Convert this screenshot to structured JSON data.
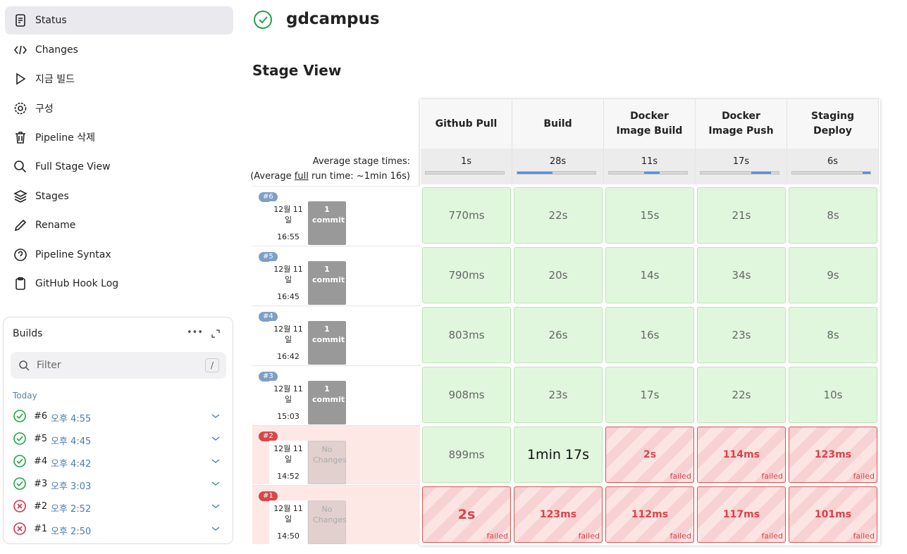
{
  "sidebar": {
    "items": [
      "Status",
      "Changes",
      "지금 빌드",
      "구성",
      "Pipeline 삭제",
      "Full Stage View",
      "Stages",
      "Rename",
      "Pipeline Syntax",
      "GitHub Hook Log"
    ]
  },
  "builds": {
    "title": "Builds",
    "filter": "Filter",
    "shortcut": "/",
    "group": "Today",
    "items": [
      {
        "number": "#6",
        "time": "오후 4:55",
        "status": "success"
      },
      {
        "number": "#5",
        "time": "오후 4:45",
        "status": "success"
      },
      {
        "number": "#4",
        "time": "오후 4:42",
        "status": "success"
      },
      {
        "number": "#3",
        "time": "오후 3:03",
        "status": "success"
      },
      {
        "number": "#2",
        "time": "오후 2:52",
        "status": "failed"
      },
      {
        "number": "#1",
        "time": "오후 2:50",
        "status": "failed"
      }
    ]
  },
  "header": {
    "title": "gdcampus"
  },
  "stage_view": {
    "title": "Stage View",
    "stages": [
      "Github Pull",
      "Build",
      "Docker Image Build",
      "Docker Image Push",
      "Staging Deploy"
    ],
    "avg_label": "Average stage times:",
    "avg_run_prefix": "(Average ",
    "avg_run_full": "full",
    "avg_run_suffix": " run time: ~1min 16s)",
    "avg_times": [
      "1s",
      "28s",
      "11s",
      "17s",
      "6s"
    ],
    "failed_label": "failed",
    "runs": [
      {
        "number": "#6",
        "date": "12월 11 일",
        "time": "16:55",
        "changes": "1 commit",
        "status": "success",
        "cells": [
          {
            "time": "770ms",
            "status": "success"
          },
          {
            "time": "22s",
            "status": "success"
          },
          {
            "time": "15s",
            "status": "success"
          },
          {
            "time": "21s",
            "status": "success"
          },
          {
            "time": "8s",
            "status": "success"
          }
        ]
      },
      {
        "number": "#5",
        "date": "12월 11 일",
        "time": "16:45",
        "changes": "1 commit",
        "status": "success",
        "cells": [
          {
            "time": "790ms",
            "status": "success"
          },
          {
            "time": "20s",
            "status": "success"
          },
          {
            "time": "14s",
            "status": "success"
          },
          {
            "time": "34s",
            "status": "success"
          },
          {
            "time": "9s",
            "status": "success"
          }
        ]
      },
      {
        "number": "#4",
        "date": "12월 11 일",
        "time": "16:42",
        "changes": "1 commit",
        "status": "success",
        "cells": [
          {
            "time": "803ms",
            "status": "success"
          },
          {
            "time": "26s",
            "status": "success"
          },
          {
            "time": "16s",
            "status": "success"
          },
          {
            "time": "23s",
            "status": "success"
          },
          {
            "time": "8s",
            "status": "success"
          }
        ]
      },
      {
        "number": "#3",
        "date": "12월 11 일",
        "time": "15:03",
        "changes": "1 commit",
        "status": "success",
        "cells": [
          {
            "time": "908ms",
            "status": "success"
          },
          {
            "time": "23s",
            "status": "success"
          },
          {
            "time": "17s",
            "status": "success"
          },
          {
            "time": "22s",
            "status": "success"
          },
          {
            "time": "10s",
            "status": "success"
          }
        ]
      },
      {
        "number": "#2",
        "date": "12월 11 일",
        "time": "14:52",
        "changes": "No Changes",
        "status": "failed",
        "cells": [
          {
            "time": "899ms",
            "status": "success"
          },
          {
            "time": "1min 17s",
            "status": "success"
          },
          {
            "time": "2s",
            "status": "failed"
          },
          {
            "time": "114ms",
            "status": "failed"
          },
          {
            "time": "123ms",
            "status": "failed"
          }
        ]
      },
      {
        "number": "#1",
        "date": "12월 11 일",
        "time": "14:50",
        "changes": "No Changes",
        "status": "failed",
        "cells": [
          {
            "time": "2s",
            "status": "failed"
          },
          {
            "time": "123ms",
            "status": "failed"
          },
          {
            "time": "112ms",
            "status": "failed"
          },
          {
            "time": "117ms",
            "status": "failed"
          },
          {
            "time": "101ms",
            "status": "failed"
          }
        ]
      }
    ]
  }
}
